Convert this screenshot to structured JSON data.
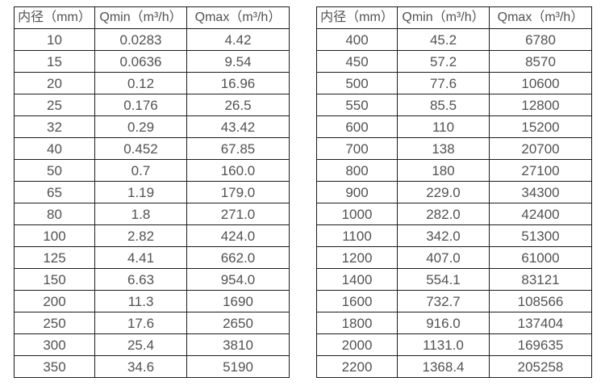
{
  "colors": {
    "background": "#ffffff",
    "table_border": "#1c1c1c",
    "table_text": "#525252",
    "cell_background": "#ffffff"
  },
  "tables": [
    {
      "headers": [
        "内径（mm）",
        "Qmin（m³/h）",
        "Qmax（m³/h）"
      ],
      "rows": [
        [
          "10",
          "0.0283",
          "4.42"
        ],
        [
          "15",
          "0.0636",
          "9.54"
        ],
        [
          "20",
          "0.12",
          "16.96"
        ],
        [
          "25",
          "0.176",
          "26.5"
        ],
        [
          "32",
          "0.29",
          "43.42"
        ],
        [
          "40",
          "0.452",
          "67.85"
        ],
        [
          "50",
          "0.7",
          "160.0"
        ],
        [
          "65",
          "1.19",
          "179.0"
        ],
        [
          "80",
          "1.8",
          "271.0"
        ],
        [
          "100",
          "2.82",
          "424.0"
        ],
        [
          "125",
          "4.41",
          "662.0"
        ],
        [
          "150",
          "6.63",
          "954.0"
        ],
        [
          "200",
          "11.3",
          "1690"
        ],
        [
          "250",
          "17.6",
          "2650"
        ],
        [
          "300",
          "25.4",
          "3810"
        ],
        [
          "350",
          "34.6",
          "5190"
        ]
      ]
    },
    {
      "headers": [
        "内径（mm）",
        "Qmin（m³/h）",
        "Qmax（m³/h）"
      ],
      "rows": [
        [
          "400",
          "45.2",
          "6780"
        ],
        [
          "450",
          "57.2",
          "8570"
        ],
        [
          "500",
          "77.6",
          "10600"
        ],
        [
          "550",
          "85.5",
          "12800"
        ],
        [
          "600",
          "110",
          "15200"
        ],
        [
          "700",
          "138",
          "20700"
        ],
        [
          "800",
          "180",
          "27100"
        ],
        [
          "900",
          "229.0",
          "34300"
        ],
        [
          "1000",
          "282.0",
          "42400"
        ],
        [
          "1100",
          "342.0",
          "51300"
        ],
        [
          "1200",
          "407.0",
          "61000"
        ],
        [
          "1400",
          "554.1",
          "83121"
        ],
        [
          "1600",
          "732.7",
          "108566"
        ],
        [
          "1800",
          "916.0",
          "137404"
        ],
        [
          "2000",
          "1131.0",
          "169635"
        ],
        [
          "2200",
          "1368.4",
          "205258"
        ]
      ]
    }
  ]
}
